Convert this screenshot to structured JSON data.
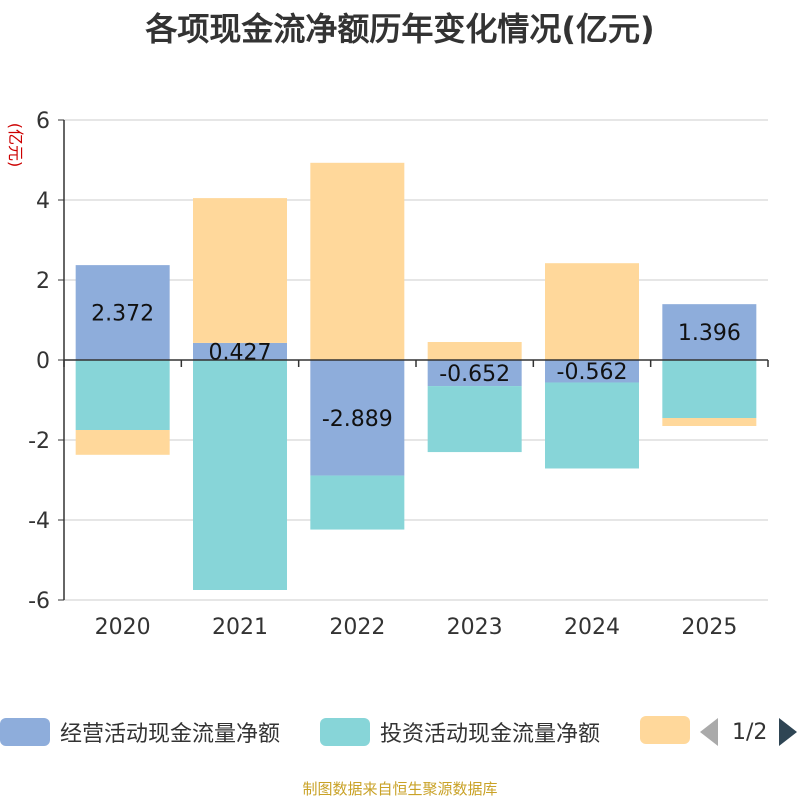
{
  "chart_data": {
    "type": "bar",
    "stacked": true,
    "title": "各项现金流净额历年变化情况(亿元)",
    "ylabel": "(亿元)",
    "xlabel": "",
    "categories": [
      "2020",
      "2021",
      "2022",
      "2023",
      "2024",
      "2025"
    ],
    "ylim": [
      -6,
      6
    ],
    "yticks": [
      6,
      4,
      2,
      0,
      -2,
      -4,
      -6
    ],
    "grid": true,
    "legend_position": "bottom",
    "series": [
      {
        "name": "经营活动现金流量净额",
        "color": "#8eaddb",
        "values": [
          2.372,
          0.427,
          -2.889,
          -0.652,
          -0.562,
          1.396
        ],
        "labels": [
          "2.372",
          "0.427",
          "-2.889",
          "-0.652",
          "-0.562",
          "1.396"
        ]
      },
      {
        "name": "投资活动现金流量净额",
        "color": "#87d5d8",
        "values": [
          -1.75,
          -5.75,
          -1.35,
          -1.65,
          -2.15,
          -1.45
        ]
      },
      {
        "name": "",
        "color": "#ffd89b",
        "values": [
          -0.62,
          3.62,
          4.93,
          0.45,
          2.42,
          -0.2
        ]
      }
    ]
  },
  "legend": {
    "items": [
      "经营活动现金流量净额",
      "投资活动现金流量净额",
      ""
    ],
    "page": "1/2"
  },
  "source": "制图数据来自恒生聚源数据库"
}
